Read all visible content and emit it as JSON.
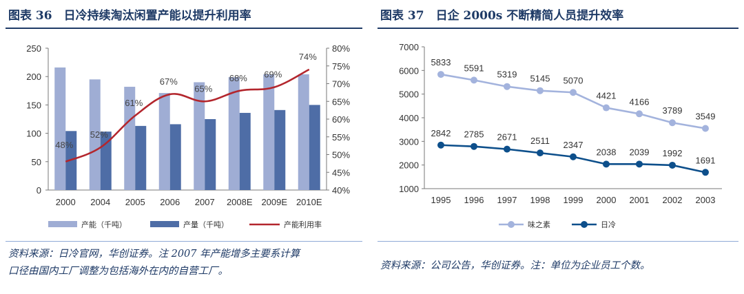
{
  "left": {
    "title": "图表 36　日冷持续淘汰闲置产能以提升利用率",
    "source_line1": "资料来源：日冷官网，华创证券。注 2007 年产能增多主要系计算",
    "source_line2": "口径由国内工厂调整为包括海外在内的自营工厂。"
  },
  "right": {
    "title": "图表 37　日企 2000s 不断精简人员提升效率",
    "source_line1": "资料来源：公司公告，华创证券。注：单位为企业员工个数。"
  },
  "colors": {
    "title": "#1e3a66",
    "capacity_bar": "#9fadd4",
    "output_bar": "#4e6da6",
    "utilization_line": "#b3262d",
    "ajinomoto_line": "#a3b3dd",
    "nichirei_line": "#0d4f8b"
  },
  "chart_data": [
    {
      "type": "bar",
      "categories": [
        "2000",
        "2004",
        "2005",
        "2006",
        "2007",
        "2008E",
        "2009E",
        "2010E"
      ],
      "series": [
        {
          "name": "产能（千吨）",
          "kind": "bar",
          "axis": "left",
          "values": [
            216,
            195,
            182,
            171,
            190,
            199,
            204,
            204
          ]
        },
        {
          "name": "产量（千吨）",
          "kind": "bar",
          "axis": "left",
          "values": [
            104,
            103,
            113,
            116,
            125,
            136,
            141,
            150
          ]
        },
        {
          "name": "产能利用率",
          "kind": "line",
          "axis": "right",
          "values": [
            48,
            52,
            61,
            67,
            65,
            68,
            69,
            74
          ],
          "labels": [
            "48%",
            "52%",
            "61%",
            "67%",
            "65%",
            "68%",
            "69%",
            "74%"
          ]
        }
      ],
      "ylim_left": [
        0,
        250
      ],
      "ylim_right": [
        40,
        80
      ],
      "yticks_left": [
        "0",
        "50",
        "100",
        "150",
        "200",
        "250"
      ],
      "yticks_right": [
        "40%",
        "45%",
        "50%",
        "55%",
        "60%",
        "65%",
        "70%",
        "75%",
        "80%"
      ],
      "legend_position": "bottom"
    },
    {
      "type": "line",
      "categories": [
        "1995",
        "1996",
        "1997",
        "1998",
        "1999",
        "2000",
        "2001",
        "2002",
        "2003"
      ],
      "series": [
        {
          "name": "味之素",
          "values": [
            5833,
            5591,
            5319,
            5145,
            5070,
            4421,
            4166,
            3789,
            3549
          ]
        },
        {
          "name": "日冷",
          "values": [
            2842,
            2785,
            2671,
            2511,
            2347,
            2038,
            2039,
            1992,
            1691
          ]
        }
      ],
      "ylim": [
        1000,
        7000
      ],
      "yticks": [
        "1000",
        "2000",
        "3000",
        "4000",
        "5000",
        "6000",
        "7000"
      ],
      "legend_position": "bottom"
    }
  ]
}
